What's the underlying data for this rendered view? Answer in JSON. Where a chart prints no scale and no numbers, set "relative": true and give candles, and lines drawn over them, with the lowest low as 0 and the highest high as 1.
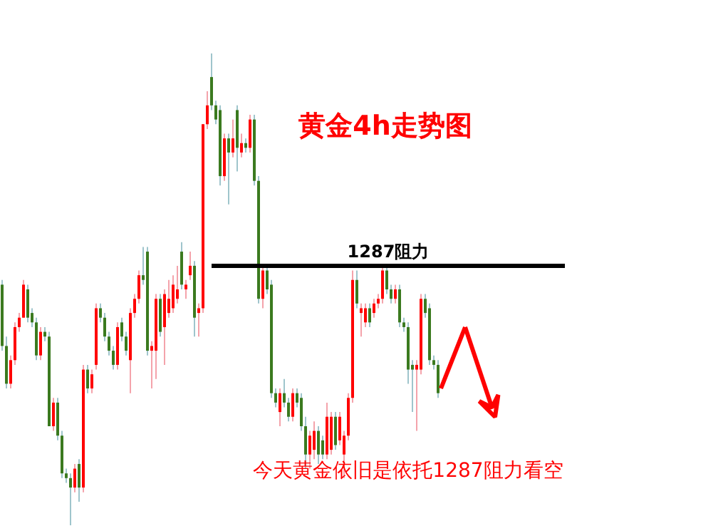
{
  "chart_data": {
    "type": "candlestick",
    "title": "黄金4h走势图",
    "relative": true,
    "annotations": [
      "今天黄金依旧是依托1287阻力看空"
    ],
    "ref_lines": [
      {
        "axis": "y",
        "value": 0.55,
        "label": "1287阻力",
        "color": "#000000"
      }
    ],
    "categories": [
      null,
      null,
      null,
      null,
      null,
      null,
      null,
      null,
      null,
      null,
      null,
      null,
      null,
      null,
      null,
      null,
      null,
      null,
      null,
      null,
      null,
      null,
      null,
      null,
      null,
      null,
      null,
      null,
      null,
      null,
      null,
      null,
      null,
      null,
      null,
      null,
      null,
      null,
      null,
      null,
      null,
      null,
      null,
      null,
      null,
      null,
      null,
      null,
      null,
      null,
      null,
      null,
      null,
      null,
      null,
      null,
      null,
      null,
      null,
      null,
      null,
      null,
      null,
      null,
      null,
      null,
      null,
      null,
      null,
      null,
      null,
      null,
      null,
      null,
      null,
      null,
      null,
      null,
      null,
      null,
      null,
      null,
      null,
      null,
      null,
      null,
      null,
      null,
      null,
      null,
      null,
      null,
      null,
      null,
      null,
      null,
      null,
      null,
      null,
      null,
      null,
      null,
      null
    ],
    "ohlc": [
      [
        0.51,
        0.52,
        0.37,
        0.38
      ],
      [
        0.38,
        0.4,
        0.29,
        0.3
      ],
      [
        0.3,
        0.36,
        0.29,
        0.35
      ],
      [
        0.35,
        0.43,
        0.34,
        0.42
      ],
      [
        0.42,
        0.45,
        0.41,
        0.44
      ],
      [
        0.44,
        0.52,
        0.44,
        0.51
      ],
      [
        0.5,
        0.51,
        0.43,
        0.44
      ],
      [
        0.45,
        0.46,
        0.42,
        0.43
      ],
      [
        0.43,
        0.44,
        0.35,
        0.36
      ],
      [
        0.36,
        0.42,
        0.35,
        0.41
      ],
      [
        0.41,
        0.42,
        0.39,
        0.4
      ],
      [
        0.4,
        0.41,
        0.21,
        0.21
      ],
      [
        0.21,
        0.27,
        0.2,
        0.26
      ],
      [
        0.26,
        0.27,
        0.18,
        0.19
      ],
      [
        0.19,
        0.2,
        0.1,
        0.11
      ],
      [
        0.11,
        0.12,
        0.09,
        0.1
      ],
      [
        0.1,
        0.11,
        0.0,
        0.08
      ],
      [
        0.08,
        0.13,
        0.07,
        0.12
      ],
      [
        0.13,
        0.14,
        0.05,
        0.08
      ],
      [
        0.08,
        0.34,
        0.07,
        0.33
      ],
      [
        0.33,
        0.34,
        0.28,
        0.29
      ],
      [
        0.29,
        0.33,
        0.28,
        0.32
      ],
      [
        0.34,
        0.47,
        0.33,
        0.46
      ],
      [
        0.46,
        0.47,
        0.43,
        0.44
      ],
      [
        0.44,
        0.45,
        0.39,
        0.4
      ],
      [
        0.4,
        0.41,
        0.36,
        0.37
      ],
      [
        0.37,
        0.38,
        0.33,
        0.34
      ],
      [
        0.34,
        0.43,
        0.33,
        0.42
      ],
      [
        0.43,
        0.44,
        0.39,
        0.4
      ],
      [
        0.4,
        0.41,
        0.36,
        0.37
      ],
      [
        0.35,
        0.46,
        0.28,
        0.45
      ],
      [
        0.45,
        0.49,
        0.44,
        0.48
      ],
      [
        0.48,
        0.54,
        0.47,
        0.53
      ],
      [
        0.53,
        0.59,
        0.51,
        0.52
      ],
      [
        0.58,
        0.59,
        0.36,
        0.37
      ],
      [
        0.37,
        0.39,
        0.29,
        0.38
      ],
      [
        0.37,
        0.49,
        0.31,
        0.48
      ],
      [
        0.48,
        0.49,
        0.4,
        0.41
      ],
      [
        0.42,
        0.5,
        0.34,
        0.49
      ],
      [
        0.45,
        0.52,
        0.44,
        0.48
      ],
      [
        0.46,
        0.53,
        0.45,
        0.51
      ],
      [
        0.48,
        0.55,
        0.47,
        0.5
      ],
      [
        0.58,
        0.6,
        0.5,
        0.51
      ],
      [
        0.5,
        0.52,
        0.48,
        0.51
      ],
      [
        0.53,
        0.58,
        0.52,
        0.55
      ],
      [
        0.55,
        0.56,
        0.4,
        0.44
      ],
      [
        0.45,
        0.47,
        0.4,
        0.46
      ],
      [
        0.46,
        0.85,
        0.45,
        0.85
      ],
      [
        0.85,
        0.92,
        0.84,
        0.89
      ],
      [
        0.95,
        1.0,
        0.88,
        0.89
      ],
      [
        0.89,
        0.9,
        0.85,
        0.86
      ],
      [
        0.88,
        0.89,
        0.72,
        0.74
      ],
      [
        0.74,
        0.83,
        0.73,
        0.82
      ],
      [
        0.82,
        0.83,
        0.68,
        0.79
      ],
      [
        0.79,
        0.86,
        0.78,
        0.82
      ],
      [
        0.88,
        0.89,
        0.75,
        0.8
      ],
      [
        0.79,
        0.83,
        0.78,
        0.81
      ],
      [
        0.81,
        0.82,
        0.79,
        0.8
      ],
      [
        0.8,
        0.87,
        0.79,
        0.86
      ],
      [
        0.86,
        0.87,
        0.72,
        0.73
      ],
      [
        0.73,
        0.74,
        0.47,
        0.48
      ],
      [
        0.48,
        0.55,
        0.46,
        0.54
      ],
      [
        0.54,
        0.55,
        0.49,
        0.5
      ],
      [
        0.51,
        0.52,
        0.27,
        0.28
      ],
      [
        0.28,
        0.29,
        0.25,
        0.26
      ],
      [
        0.24,
        0.29,
        0.21,
        0.28
      ],
      [
        0.28,
        0.31,
        0.25,
        0.26
      ],
      [
        0.26,
        0.27,
        0.22,
        0.23
      ],
      [
        0.23,
        0.29,
        0.22,
        0.28
      ],
      [
        0.28,
        0.29,
        0.25,
        0.26
      ],
      [
        0.27,
        0.28,
        0.2,
        0.21
      ],
      [
        0.21,
        0.23,
        0.12,
        0.15
      ],
      [
        0.15,
        0.2,
        0.12,
        0.19
      ],
      [
        0.16,
        0.22,
        0.14,
        0.2
      ],
      [
        0.2,
        0.21,
        0.13,
        0.15
      ],
      [
        0.18,
        0.19,
        0.14,
        0.15
      ],
      [
        0.15,
        0.26,
        0.14,
        0.23
      ],
      [
        0.16,
        0.24,
        0.15,
        0.23
      ],
      [
        0.23,
        0.24,
        0.16,
        0.17
      ],
      [
        0.18,
        0.24,
        0.17,
        0.23
      ],
      [
        0.15,
        0.2,
        0.1,
        0.19
      ],
      [
        0.19,
        0.28,
        0.18,
        0.27
      ],
      [
        0.27,
        0.54,
        0.26,
        0.52
      ],
      [
        0.52,
        0.54,
        0.46,
        0.47
      ],
      [
        0.45,
        0.47,
        0.4,
        0.46
      ],
      [
        0.43,
        0.47,
        0.42,
        0.46
      ],
      [
        0.46,
        0.47,
        0.42,
        0.43
      ],
      [
        0.45,
        0.48,
        0.44,
        0.47
      ],
      [
        0.47,
        0.49,
        0.46,
        0.48
      ],
      [
        0.48,
        0.55,
        0.47,
        0.54
      ],
      [
        0.54,
        0.55,
        0.49,
        0.5
      ],
      [
        0.5,
        0.51,
        0.47,
        0.48
      ],
      [
        0.48,
        0.51,
        0.47,
        0.5
      ],
      [
        0.5,
        0.51,
        0.42,
        0.43
      ],
      [
        0.43,
        0.44,
        0.41,
        0.42
      ],
      [
        0.42,
        0.43,
        0.3,
        0.33
      ],
      [
        0.34,
        0.35,
        0.24,
        0.33
      ],
      [
        0.33,
        0.35,
        0.2,
        0.34
      ],
      [
        0.33,
        0.49,
        0.32,
        0.48
      ],
      [
        0.48,
        0.49,
        0.44,
        0.45
      ],
      [
        0.46,
        0.47,
        0.34,
        0.35
      ],
      [
        0.35,
        0.36,
        0.33,
        0.34
      ],
      [
        0.34,
        0.35,
        0.27,
        0.28
      ]
    ]
  }
}
